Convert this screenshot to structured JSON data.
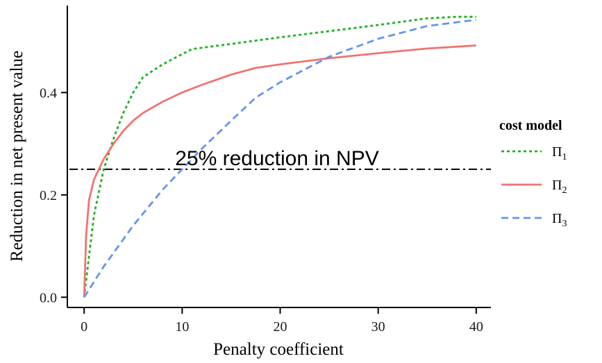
{
  "chart_data": {
    "type": "line",
    "xlabel": "Penalty coefficient",
    "ylabel": "Reduction in net present value",
    "xlim": [
      -1.5,
      41.5
    ],
    "ylim": [
      -0.02,
      0.57
    ],
    "x_ticks": [
      0,
      10,
      20,
      30,
      40
    ],
    "y_ticks": [
      0.0,
      0.2,
      0.4
    ],
    "x_tick_labels": [
      "0",
      "10",
      "20",
      "30",
      "40"
    ],
    "y_tick_labels": [
      "0.0",
      "0.2",
      "0.4"
    ],
    "grid": false,
    "legend": {
      "title": "cost model",
      "placement": "right"
    },
    "reference_line": {
      "y": 0.25,
      "label": "25% reduction in NPV",
      "style": "dashdot"
    },
    "series": [
      {
        "name": "Π1",
        "base": "Π",
        "sub": "1",
        "color": "#1ab31a",
        "dash": "dotted",
        "x": [
          0,
          0.5,
          1,
          2,
          3,
          4,
          5,
          6,
          8,
          10,
          11,
          15,
          20,
          25,
          30,
          35,
          38,
          40
        ],
        "y": [
          0,
          0.08,
          0.16,
          0.25,
          0.31,
          0.36,
          0.4,
          0.43,
          0.455,
          0.475,
          0.485,
          0.495,
          0.508,
          0.52,
          0.532,
          0.545,
          0.548,
          0.548
        ]
      },
      {
        "name": "Π2",
        "base": "Π",
        "sub": "2",
        "color": "#f07470",
        "dash": "solid",
        "x": [
          0,
          0.2,
          0.5,
          1,
          2,
          3,
          4,
          5,
          6,
          8,
          10,
          12,
          15,
          17.5,
          20,
          25,
          30,
          35,
          40
        ],
        "y": [
          0,
          0.12,
          0.19,
          0.23,
          0.27,
          0.3,
          0.325,
          0.345,
          0.36,
          0.382,
          0.4,
          0.415,
          0.435,
          0.448,
          0.455,
          0.467,
          0.477,
          0.486,
          0.492
        ]
      },
      {
        "name": "Π3",
        "base": "Π",
        "sub": "3",
        "color": "#6495ed",
        "dash": "dashed",
        "x": [
          0,
          2,
          5,
          8,
          10,
          12,
          15,
          17.5,
          20,
          25,
          30,
          35,
          40
        ],
        "y": [
          0,
          0.06,
          0.14,
          0.21,
          0.25,
          0.29,
          0.345,
          0.39,
          0.42,
          0.47,
          0.505,
          0.53,
          0.542
        ]
      }
    ]
  }
}
